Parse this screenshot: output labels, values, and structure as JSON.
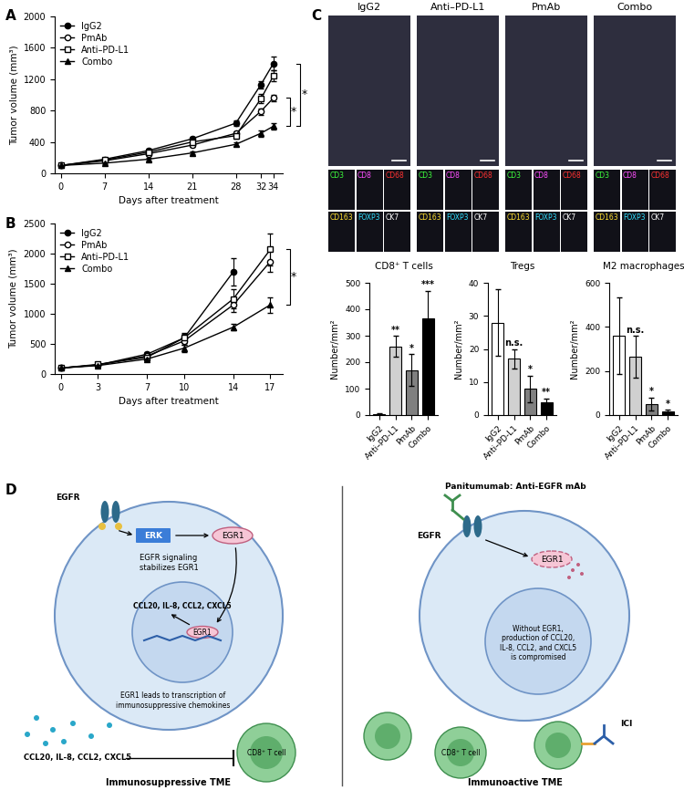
{
  "panel_labels": [
    "A",
    "B",
    "C",
    "D"
  ],
  "chart_data": [
    {
      "type": "line",
      "xlabel": "Days after treatment",
      "ylabel": "Tumor volume (mm³)",
      "x": [
        0,
        7,
        14,
        21,
        28,
        32,
        34
      ],
      "xlim": [
        -1,
        35.5
      ],
      "xticks": [
        0,
        7,
        14,
        21,
        28,
        32,
        34
      ],
      "ylim": [
        0,
        2000
      ],
      "yticks": [
        0,
        400,
        800,
        1200,
        1600,
        2000
      ],
      "legend": "upper left",
      "series": [
        {
          "name": "IgG2",
          "color": "#000000",
          "marker": "circle",
          "values": [
            100,
            180,
            290,
            440,
            640,
            1130,
            1400
          ],
          "errors": [
            10,
            15,
            20,
            25,
            40,
            50,
            90
          ]
        },
        {
          "name": "PmAb",
          "color": "#000000",
          "marker": "circle_open",
          "values": [
            100,
            160,
            250,
            360,
            510,
            790,
            960
          ],
          "errors": [
            10,
            15,
            20,
            25,
            30,
            40,
            45
          ]
        },
        {
          "name": "Anti–PD-L1",
          "color": "#000000",
          "marker": "square_open",
          "values": [
            100,
            170,
            270,
            400,
            480,
            950,
            1240
          ],
          "errors": [
            10,
            15,
            20,
            25,
            35,
            60,
            70
          ]
        },
        {
          "name": "Combo",
          "color": "#000000",
          "marker": "triangle",
          "values": [
            100,
            130,
            180,
            260,
            370,
            510,
            600
          ],
          "errors": [
            10,
            12,
            15,
            20,
            25,
            40,
            40
          ]
        }
      ],
      "annotations": [
        {
          "text": "*",
          "between": [
            "IgG2",
            "Combo"
          ]
        },
        {
          "text": "*",
          "between": [
            "PmAb",
            "Combo"
          ]
        }
      ]
    },
    {
      "type": "line",
      "xlabel": "Days after treatment",
      "ylabel": "Tumor volume (mm³)",
      "x": [
        0,
        3,
        7,
        10,
        14,
        17
      ],
      "xlim": [
        -0.5,
        18
      ],
      "xticks": [
        0,
        3,
        7,
        10,
        14,
        17
      ],
      "ylim": [
        0,
        2500
      ],
      "yticks": [
        0,
        500,
        1000,
        1500,
        2000,
        2500
      ],
      "legend": "upper left",
      "series": [
        {
          "name": "IgG2",
          "color": "#000000",
          "marker": "circle",
          "values": [
            100,
            150,
            330,
            600,
            1700,
            null
          ],
          "errors": [
            8,
            15,
            40,
            80,
            230,
            null
          ]
        },
        {
          "name": "PmAb",
          "color": "#000000",
          "marker": "circle_open",
          "values": [
            100,
            150,
            300,
            550,
            1150,
            1870
          ],
          "errors": [
            8,
            15,
            40,
            60,
            120,
            170
          ]
        },
        {
          "name": "Anti–PD-L1",
          "color": "#000000",
          "marker": "square_open",
          "values": [
            100,
            160,
            280,
            600,
            1250,
            2070
          ],
          "errors": [
            8,
            15,
            50,
            70,
            160,
            270
          ]
        },
        {
          "name": "Combo",
          "color": "#000000",
          "marker": "triangle",
          "values": [
            100,
            140,
            250,
            430,
            780,
            1150
          ],
          "errors": [
            8,
            12,
            30,
            60,
            60,
            130
          ]
        }
      ],
      "annotations": [
        {
          "text": "*",
          "between": [
            "Anti–PD-L1",
            "Combo"
          ]
        }
      ]
    },
    {
      "type": "bar",
      "title": "CD8⁺ T cells",
      "ylabel": "Number/mm²",
      "categories": [
        "IgG2",
        "Anti–PD-L1",
        "PmAb",
        "Combo"
      ],
      "values": [
        5,
        260,
        170,
        365
      ],
      "errors": [
        3,
        40,
        60,
        105
      ],
      "colors": [
        "#ffffff",
        "#d0d0d0",
        "#808080",
        "#000000"
      ],
      "significance": [
        null,
        "**",
        "*",
        "***"
      ],
      "ylim": [
        0,
        500
      ],
      "yticks": [
        0,
        100,
        200,
        300,
        400,
        500
      ]
    },
    {
      "type": "bar",
      "title": "Tregs",
      "ylabel": "Number/mm²",
      "categories": [
        "IgG2",
        "Anti–PD-L1",
        "PmAb",
        "Combo"
      ],
      "values": [
        28,
        17,
        8,
        4
      ],
      "errors": [
        10,
        3,
        4,
        1
      ],
      "colors": [
        "#ffffff",
        "#d0d0d0",
        "#808080",
        "#000000"
      ],
      "significance": [
        null,
        "n.s.",
        "*",
        "**"
      ],
      "ylim": [
        0,
        40
      ],
      "yticks": [
        0,
        10,
        20,
        30,
        40
      ]
    },
    {
      "type": "bar",
      "title": "M2 macrophages",
      "ylabel": "Number/mm²",
      "categories": [
        "IgG2",
        "Anti–PD-L1",
        "PmAb",
        "Combo"
      ],
      "values": [
        360,
        265,
        50,
        15
      ],
      "errors": [
        175,
        95,
        30,
        10
      ],
      "colors": [
        "#ffffff",
        "#d0d0d0",
        "#808080",
        "#000000"
      ],
      "significance": [
        null,
        "n.s.",
        "*",
        "*"
      ],
      "ylim": [
        0,
        600
      ],
      "yticks": [
        0,
        200,
        400,
        600
      ]
    }
  ],
  "images": {
    "columns": [
      "IgG2",
      "Anti–PD-L1",
      "PmAb",
      "Combo"
    ],
    "channels": [
      {
        "name": "CD3",
        "color": "#3cff3c"
      },
      {
        "name": "CD8",
        "color": "#ff4dff"
      },
      {
        "name": "CD68",
        "color": "#ff3030"
      },
      {
        "name": "CD163",
        "color": "#ffe030"
      },
      {
        "name": "FOXP3",
        "color": "#30e0ff"
      },
      {
        "name": "CK7",
        "color": "#ffffff"
      }
    ]
  },
  "diagram": {
    "left": {
      "receptor": "EGFR",
      "kinase": "ERK",
      "factor": "EGR1",
      "stabilization": "EGFR signaling stabilizes EGR1",
      "genes": "CCL20, IL-8, CCL2, CXCL5",
      "nuclear_factor": "EGR1",
      "transcription": "EGR1 leads to transcription of immunosuppressive chemokines",
      "secreted": "CCL20, IL-8, CCL2, CXCL5",
      "t_cell": "CD8⁺ T cell",
      "caption": "Immunosuppressive TME"
    },
    "right": {
      "title": "Panitumumab: Anti-EGFR mAb",
      "receptor": "EGFR",
      "factor": "EGR1",
      "effect": "Without EGR1, production of CCL20, IL-8, CCL2, and CXCL5 is compromised",
      "t_cell": "CD8⁺ T cell",
      "checkpoint": "ICI",
      "caption": "Immunoactive TME"
    }
  }
}
